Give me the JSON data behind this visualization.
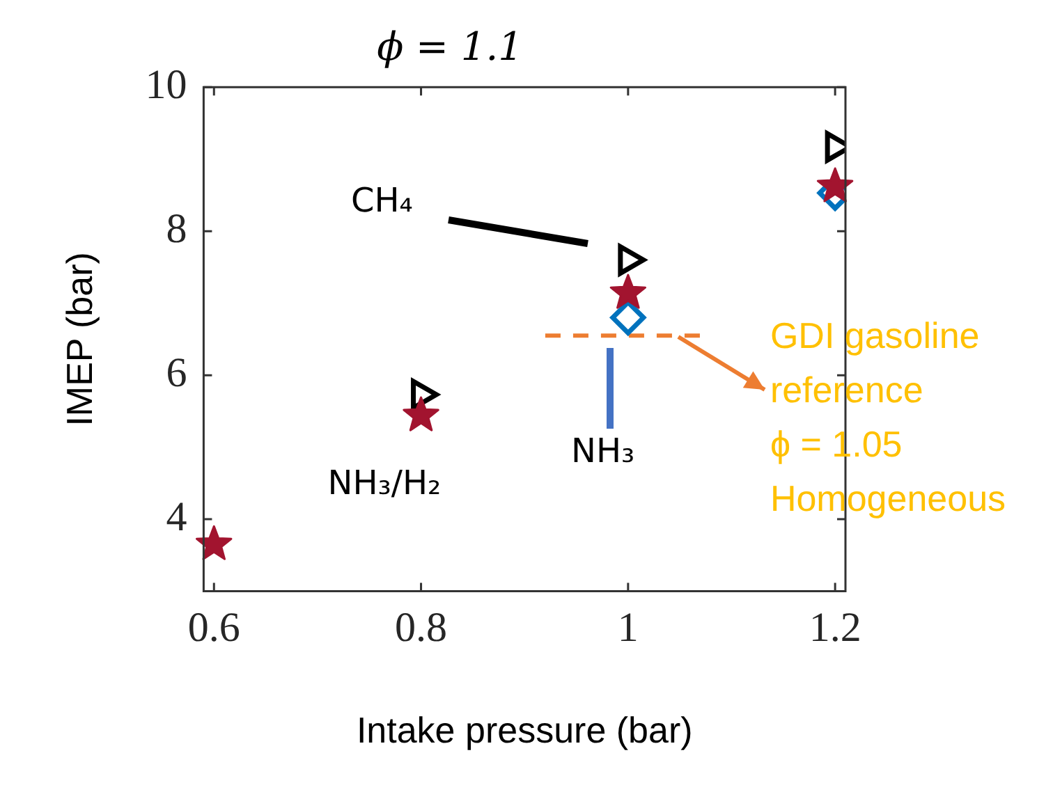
{
  "chart_data": {
    "type": "scatter",
    "title": "ϕ = 1.1",
    "xlabel": "Intake pressure (bar)",
    "ylabel": "IMEP (bar)",
    "x": [
      0.6,
      0.8,
      1,
      1.2
    ],
    "series": [
      {
        "color": "#000000",
        "marker": "triangle",
        "values": [
          null,
          5.73,
          7.6,
          9.17
        ]
      },
      {
        "color": "#a2142f",
        "marker": "star",
        "values": [
          3.65,
          5.44,
          7.14,
          8.62
        ]
      },
      {
        "color": "#0072bd",
        "marker": "diamond",
        "values": [
          null,
          null,
          6.8,
          8.53
        ]
      },
      {
        "type": "line",
        "color": "#ed7d31",
        "x": [
          0.92,
          1.07
        ],
        "values": [
          6.55,
          6.55
        ],
        "line_style": "dashed",
        "marker": "none"
      }
    ],
    "annotations": [
      "CH₄",
      {
        "text": "NH₃/H₂",
        "x": 0.8,
        "y": 5.44
      },
      "NH₃",
      {
        "text": "GDI gasoline\nreference\nϕ = 1.05\nHomogeneous",
        "x": 1.07,
        "y": 6.55
      }
    ],
    "xlim": [
      0.59,
      1.21
    ],
    "xticks": [
      0.6,
      0.8,
      1,
      1.2
    ],
    "ylim": [
      3,
      10
    ],
    "yticks": [
      4,
      6,
      8,
      10
    ],
    "legend": false
  }
}
